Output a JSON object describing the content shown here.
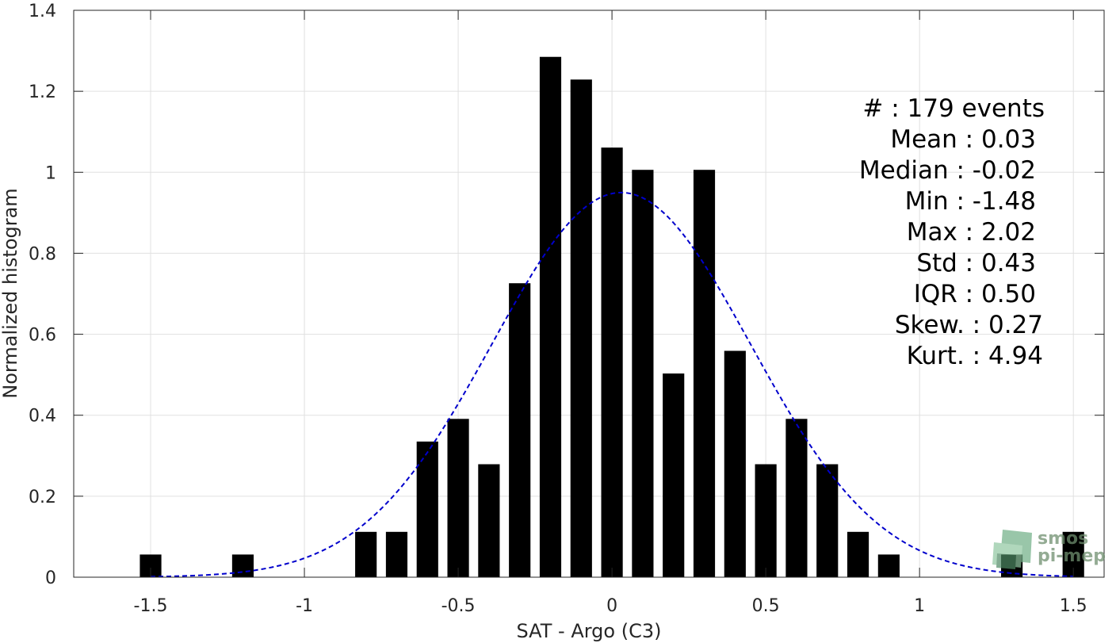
{
  "chart_data": {
    "type": "bar",
    "xlabel": "SAT - Argo (C3)",
    "ylabel": "Normalized histogram",
    "xlim": [
      -1.75,
      1.6
    ],
    "ylim": [
      0,
      1.4
    ],
    "xticks": [
      -1.5,
      -1,
      -0.5,
      0,
      0.5,
      1,
      1.5
    ],
    "xtick_labels": [
      "-1.5",
      "-1",
      "-0.5",
      "0",
      "0.5",
      "1",
      "1.5"
    ],
    "yticks": [
      0,
      0.2,
      0.4,
      0.6,
      0.8,
      1,
      1.2,
      1.4
    ],
    "ytick_labels": [
      "0",
      "0.2",
      "0.4",
      "0.6",
      "0.8",
      "1",
      "1.2",
      "1.4"
    ],
    "grid": true,
    "bar_color": "#000000",
    "bar_width": 0.07,
    "bars": [
      {
        "x": -1.5,
        "value": 0.056
      },
      {
        "x": -1.2,
        "value": 0.056
      },
      {
        "x": -0.8,
        "value": 0.112
      },
      {
        "x": -0.7,
        "value": 0.112
      },
      {
        "x": -0.6,
        "value": 0.335
      },
      {
        "x": -0.5,
        "value": 0.391
      },
      {
        "x": -0.4,
        "value": 0.279
      },
      {
        "x": -0.3,
        "value": 0.726
      },
      {
        "x": -0.2,
        "value": 1.285
      },
      {
        "x": -0.1,
        "value": 1.229
      },
      {
        "x": 0.0,
        "value": 1.061
      },
      {
        "x": 0.1,
        "value": 1.006
      },
      {
        "x": 0.2,
        "value": 0.503
      },
      {
        "x": 0.3,
        "value": 1.006
      },
      {
        "x": 0.4,
        "value": 0.559
      },
      {
        "x": 0.5,
        "value": 0.279
      },
      {
        "x": 0.6,
        "value": 0.391
      },
      {
        "x": 0.7,
        "value": 0.279
      },
      {
        "x": 0.8,
        "value": 0.112
      },
      {
        "x": 0.9,
        "value": 0.056
      },
      {
        "x": 1.3,
        "value": 0.056
      },
      {
        "x": 1.5,
        "value": 0.112
      }
    ],
    "fit_curve": {
      "kind": "gaussian",
      "mean": 0.03,
      "std": 0.42,
      "x_range": [
        -1.5,
        1.5
      ],
      "color": "#0000cc",
      "style": "dashed"
    },
    "annotation_lines": [
      "#  : 179 events",
      "Mean : 0.03",
      "Median : -0.02",
      "Min : -1.48",
      "Max : 2.02",
      "Std : 0.43",
      "IQR : 0.50",
      "Skew. : 0.27",
      "Kurt. : 4.94"
    ]
  },
  "logo": {
    "line1": "smos",
    "line2": "pi-mep",
    "icon": "smos-pimep-logo-icon",
    "color": "#5f8f6a"
  }
}
